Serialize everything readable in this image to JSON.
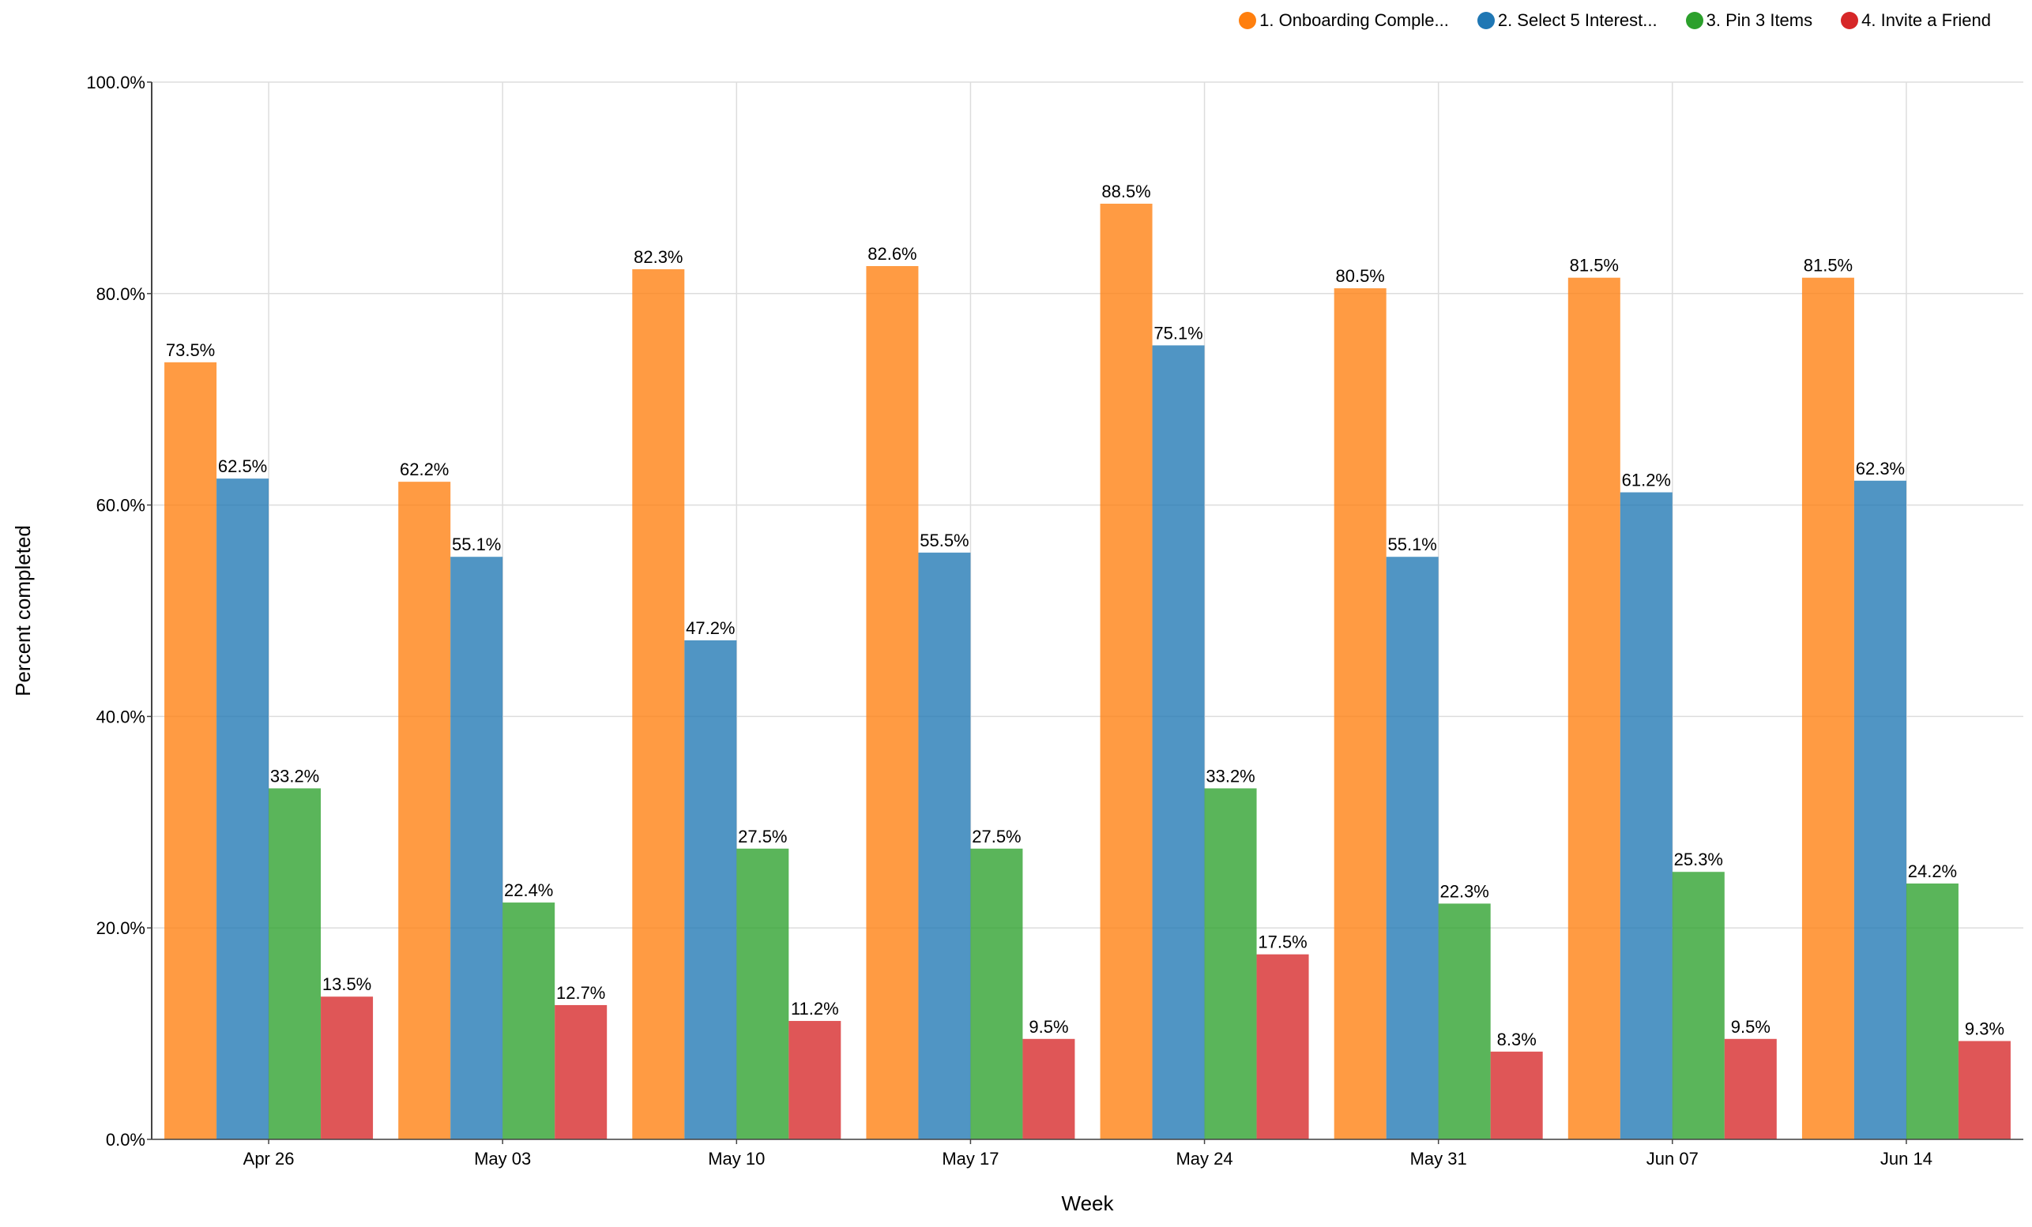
{
  "chart_data": {
    "type": "bar",
    "title": "",
    "xlabel": "Week",
    "ylabel": "Percent completed",
    "ylim": [
      0,
      100
    ],
    "yticks": [
      "0.0%",
      "20.0%",
      "40.0%",
      "60.0%",
      "80.0%",
      "100.0%"
    ],
    "grid": true,
    "legend_position": "top-right",
    "categories": [
      "Apr 26",
      "May 03",
      "May 10",
      "May 17",
      "May 24",
      "May 31",
      "Jun 07",
      "Jun 14"
    ],
    "series": [
      {
        "name": "1. Onboarding Comple...",
        "color": "#ff7f0e",
        "values": [
          73.5,
          62.2,
          82.3,
          82.6,
          88.5,
          80.5,
          81.5,
          81.5
        ]
      },
      {
        "name": "2. Select 5 Interest...",
        "color": "#1f77b4",
        "values": [
          62.5,
          55.1,
          47.2,
          55.5,
          75.1,
          55.1,
          61.2,
          62.3
        ]
      },
      {
        "name": "3. Pin 3 Items",
        "color": "#2ca02c",
        "values": [
          33.2,
          22.4,
          27.5,
          27.5,
          33.2,
          22.3,
          25.3,
          24.2
        ]
      },
      {
        "name": "4. Invite a Friend",
        "color": "#d62728",
        "values": [
          13.5,
          12.7,
          11.2,
          9.5,
          17.5,
          8.3,
          9.5,
          9.3
        ]
      }
    ]
  }
}
